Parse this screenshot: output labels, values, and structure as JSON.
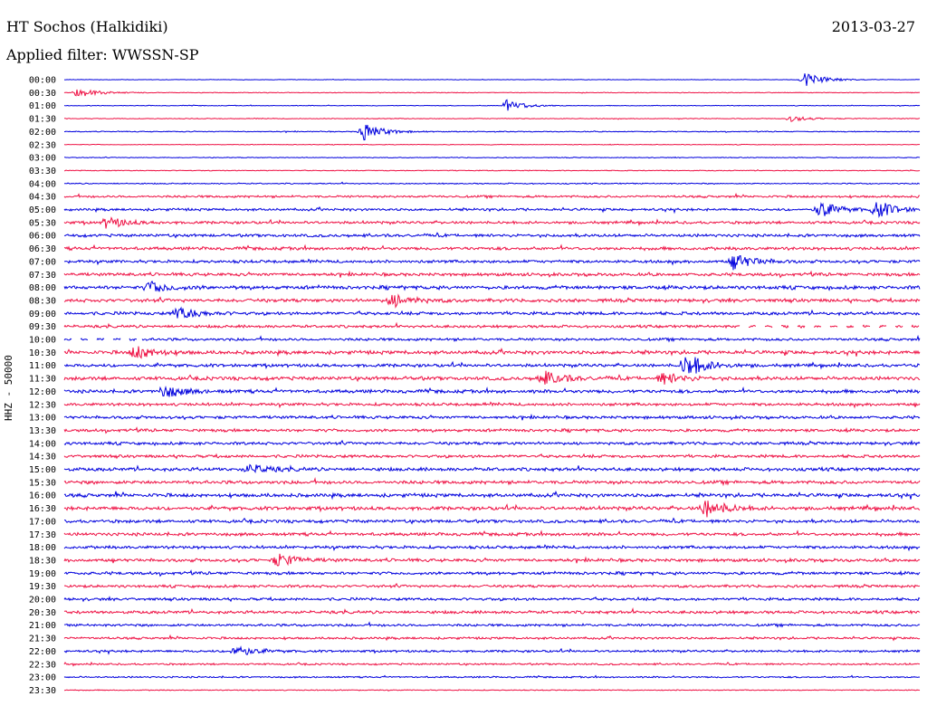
{
  "header": {
    "station": "HT Sochos (Halkidiki)",
    "date": "2013-03-27",
    "filter": "Applied filter: WWSSN-SP",
    "y_label": "HHZ - 50000"
  },
  "chart_data": {
    "type": "line",
    "title": "HT Sochos (Halkidiki)",
    "subtitle": "Applied filter: WWSSN-SP",
    "ylabel": "HHZ - 50000",
    "date": "2013-03-27",
    "colors": [
      "#0000dd",
      "#ee1144"
    ],
    "row_labels": [
      "00:00",
      "00:30",
      "01:00",
      "01:30",
      "02:00",
      "02:30",
      "03:00",
      "03:30",
      "04:00",
      "04:30",
      "05:00",
      "05:30",
      "06:00",
      "06:30",
      "07:00",
      "07:30",
      "08:00",
      "08:30",
      "09:00",
      "09:30",
      "10:00",
      "10:30",
      "11:00",
      "11:30",
      "12:00",
      "12:30",
      "13:00",
      "13:30",
      "14:00",
      "14:30",
      "15:00",
      "15:30",
      "16:00",
      "16:30",
      "17:00",
      "17:30",
      "18:00",
      "18:30",
      "19:00",
      "19:30",
      "20:00",
      "20:30",
      "21:00",
      "21:30",
      "22:00",
      "22:30",
      "23:00",
      "23:30"
    ],
    "noise_level": [
      0.2,
      0.3,
      0.3,
      0.35,
      0.4,
      0.3,
      0.35,
      0.35,
      0.5,
      1.0,
      1.1,
      1.2,
      1.3,
      1.4,
      1.3,
      1.4,
      1.6,
      1.5,
      1.4,
      1.2,
      1.2,
      1.6,
      1.4,
      1.6,
      1.5,
      1.3,
      1.3,
      1.3,
      1.3,
      1.3,
      1.5,
      1.5,
      1.6,
      1.6,
      1.4,
      1.4,
      1.3,
      1.4,
      1.3,
      1.2,
      1.2,
      1.3,
      1.1,
      1.0,
      1.0,
      0.8,
      0.7,
      0.4
    ],
    "events": [
      {
        "row": 0,
        "minute": 26.0,
        "amp": 8
      },
      {
        "row": 1,
        "minute": 0.5,
        "amp": 5
      },
      {
        "row": 2,
        "minute": 15.5,
        "amp": 6
      },
      {
        "row": 3,
        "minute": 25.5,
        "amp": 3
      },
      {
        "row": 4,
        "minute": 10.5,
        "amp": 10
      },
      {
        "row": 10,
        "minute": 26.5,
        "amp": 9
      },
      {
        "row": 10,
        "minute": 28.5,
        "amp": 9
      },
      {
        "row": 11,
        "minute": 1.5,
        "amp": 6
      },
      {
        "row": 14,
        "minute": 23.5,
        "amp": 9
      },
      {
        "row": 16,
        "minute": 3.0,
        "amp": 6
      },
      {
        "row": 17,
        "minute": 11.5,
        "amp": 7
      },
      {
        "row": 18,
        "minute": 4.0,
        "amp": 7
      },
      {
        "row": 21,
        "minute": 2.5,
        "amp": 7
      },
      {
        "row": 22,
        "minute": 21.8,
        "amp": 14
      },
      {
        "row": 23,
        "minute": 16.8,
        "amp": 8
      },
      {
        "row": 23,
        "minute": 21.0,
        "amp": 6
      },
      {
        "row": 24,
        "minute": 3.5,
        "amp": 7
      },
      {
        "row": 30,
        "minute": 6.5,
        "amp": 5
      },
      {
        "row": 33,
        "minute": 22.5,
        "amp": 10
      },
      {
        "row": 37,
        "minute": 7.5,
        "amp": 7
      },
      {
        "row": 44,
        "minute": 6.0,
        "amp": 6
      }
    ],
    "gaps": [
      {
        "row": 19,
        "from_minute": 23.5,
        "to_minute": 30,
        "pattern": "dashed"
      },
      {
        "row": 20,
        "from_minute": 0,
        "to_minute": 2.7,
        "pattern": "dashed"
      }
    ]
  }
}
